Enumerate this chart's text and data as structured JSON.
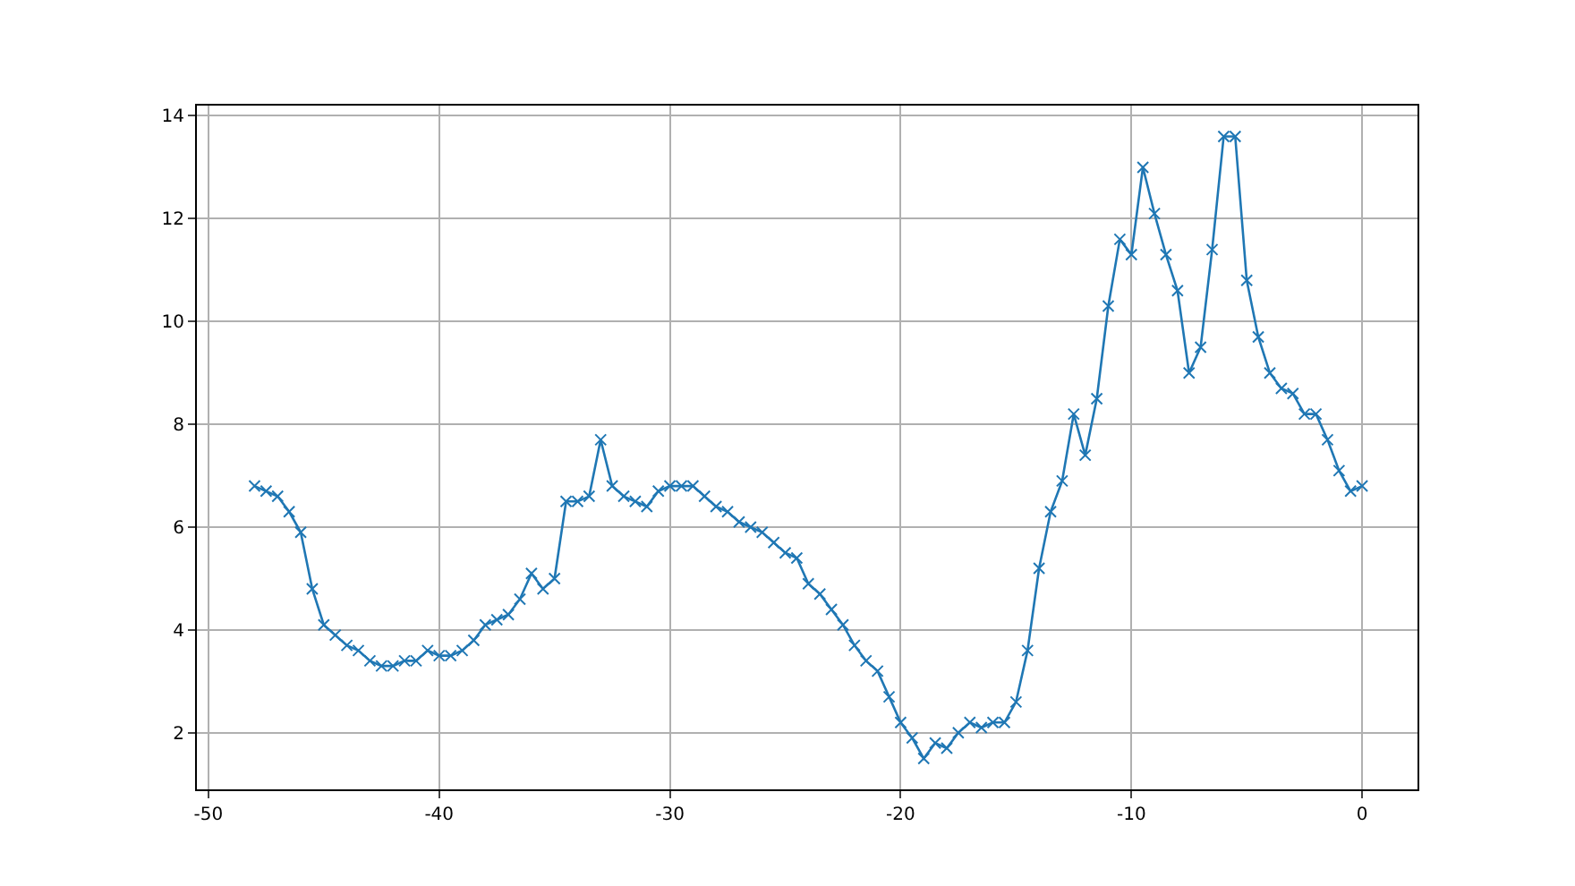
{
  "chart_data": {
    "type": "line",
    "x": [
      -48,
      -47.5,
      -47,
      -46.5,
      -46,
      -45.5,
      -45,
      -44.5,
      -44,
      -43.5,
      -43,
      -42.5,
      -42,
      -41.5,
      -41,
      -40.5,
      -40,
      -39.5,
      -39,
      -38.5,
      -38,
      -37.5,
      -37,
      -36.5,
      -36,
      -35.5,
      -35,
      -34.5,
      -34,
      -33.5,
      -33,
      -32.5,
      -32,
      -31.5,
      -31,
      -30.5,
      -30,
      -29.5,
      -29,
      -28.5,
      -28,
      -27.5,
      -27,
      -26.5,
      -26,
      -25.5,
      -25,
      -24.5,
      -24,
      -23.5,
      -23,
      -22.5,
      -22,
      -21.5,
      -21,
      -20.5,
      -20,
      -19.5,
      -19,
      -18.5,
      -18,
      -17.5,
      -17,
      -16.5,
      -16,
      -15.5,
      -15,
      -14.5,
      -14,
      -13.5,
      -13,
      -12.5,
      -12,
      -11.5,
      -11,
      -10.5,
      -10,
      -9.5,
      -9,
      -8.5,
      -8,
      -7.5,
      -7,
      -6.5,
      -6,
      -5.5,
      -5,
      -4.5,
      -4,
      -3.5,
      -3,
      -2.5,
      -2,
      -1.5,
      -1,
      -0.5,
      0
    ],
    "series": [
      {
        "color": "#1f77b4",
        "values": [
          6.8,
          6.7,
          6.6,
          6.3,
          5.9,
          4.8,
          4.1,
          3.9,
          3.7,
          3.6,
          3.4,
          3.3,
          3.3,
          3.4,
          3.4,
          3.6,
          3.5,
          3.5,
          3.6,
          3.8,
          4.1,
          4.2,
          4.3,
          4.6,
          5.1,
          4.8,
          5.0,
          6.5,
          6.5,
          6.6,
          7.7,
          6.8,
          6.6,
          6.5,
          6.4,
          6.7,
          6.8,
          6.8,
          6.8,
          6.6,
          6.4,
          6.3,
          6.1,
          6.0,
          5.9,
          5.7,
          5.5,
          5.4,
          4.9,
          4.7,
          4.4,
          4.1,
          3.7,
          3.4,
          3.2,
          2.7,
          2.2,
          1.9,
          1.5,
          1.8,
          1.7,
          2.0,
          2.2,
          2.1,
          2.2,
          2.2,
          2.6,
          3.6,
          5.2,
          6.3,
          6.9,
          8.2,
          7.4,
          8.5,
          10.3,
          11.6,
          11.3,
          13.0,
          12.1,
          11.3,
          10.6,
          9.0,
          9.5,
          11.4,
          13.6,
          13.6,
          10.8,
          9.7,
          9.0,
          8.7,
          8.6,
          8.2,
          8.2,
          7.7,
          7.1,
          6.7,
          6.8
        ]
      }
    ],
    "xlim": [
      -50.5,
      2.4
    ],
    "xticks": [
      -50,
      -40,
      -30,
      -20,
      -10,
      0
    ],
    "ylim": [
      0.9,
      14.2
    ],
    "yticks": [
      2,
      4,
      6,
      8,
      10,
      12,
      14
    ],
    "grid": true,
    "marker": "cross",
    "line_style": "solid",
    "legend": false
  }
}
